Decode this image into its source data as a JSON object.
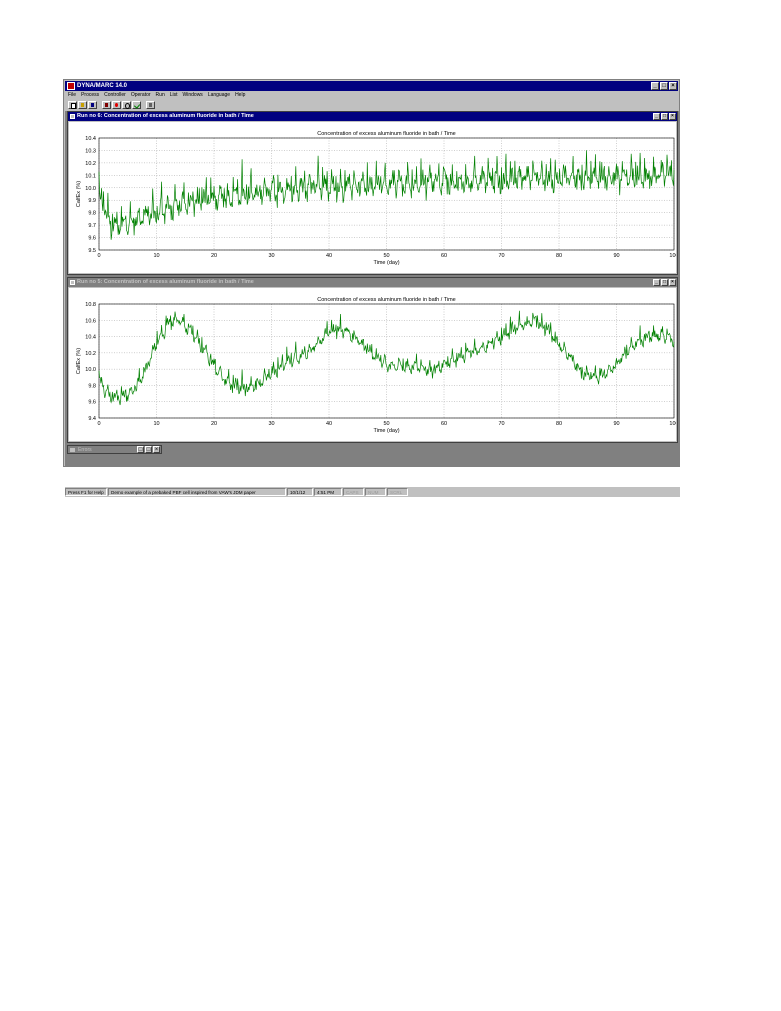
{
  "app": {
    "title": "DYNA/MARC 14.0",
    "menu": [
      "File",
      "Process",
      "Controller",
      "Operator",
      "Run",
      "List",
      "Windows",
      "Language",
      "Help"
    ],
    "toolbar_icons": [
      "new-icon",
      "open-icon",
      "save-icon",
      "chart-icon",
      "stop-icon",
      "zoom-icon",
      "check-icon",
      "print-icon"
    ],
    "window_buttons": {
      "minimize": "_",
      "maximize": "□",
      "close": "×"
    },
    "accent_color": "#000080",
    "series_color": "#008000"
  },
  "windows": [
    {
      "title": "Run no 6: Concentration of excess aluminum fluoride in bath / Time",
      "active": true
    },
    {
      "title": "Run no 5: Concentration of excess aluminum fluoride in bath / Time",
      "active": false
    }
  ],
  "minimized_window": {
    "title": "Errors"
  },
  "status_bar": {
    "help": "Press F1 for Help",
    "description": "Demo example of a prebaked PBF cell inspired from VAW's JDM paper",
    "date": "10/1/12",
    "time": "4:51 PM",
    "indicators": [
      "CAPS",
      "NUM",
      "SCRL"
    ]
  },
  "chart_data": [
    {
      "type": "line",
      "title": "Concentration of excess aluminum fluoride in bath / Time",
      "xlabel": "Time (day)",
      "ylabel": "CalfEx (%)",
      "xlim": [
        0,
        100
      ],
      "ylim": [
        9.5,
        10.4
      ],
      "xticks": [
        "0",
        "10",
        "20",
        "30",
        "40",
        "50",
        "60",
        "70",
        "80",
        "90",
        "100"
      ],
      "yticks": [
        "9.5",
        "9.6",
        "9.7",
        "9.8",
        "9.9",
        "10.0",
        "10.1",
        "10.2",
        "10.3",
        "10.4"
      ],
      "grid": true,
      "series": [
        {
          "color": "#008000",
          "x": [
            0,
            2,
            4,
            6,
            8,
            10,
            12,
            14,
            16,
            18,
            20,
            22,
            24,
            26,
            28,
            30,
            32,
            34,
            36,
            38,
            40,
            42,
            44,
            46,
            48,
            50,
            52,
            54,
            56,
            58,
            60,
            62,
            64,
            66,
            68,
            70,
            72,
            74,
            76,
            78,
            80,
            82,
            84,
            86,
            88,
            90,
            92,
            94,
            96,
            98,
            100
          ],
          "values": [
            9.95,
            9.7,
            9.68,
            9.72,
            9.76,
            9.79,
            9.83,
            9.85,
            9.88,
            9.9,
            9.92,
            9.91,
            9.93,
            9.95,
            9.96,
            9.97,
            9.96,
            9.98,
            9.99,
            10.0,
            10.0,
            9.99,
            10.01,
            10.02,
            10.0,
            10.02,
            10.03,
            10.01,
            10.03,
            10.04,
            10.05,
            10.04,
            10.03,
            10.05,
            10.06,
            10.05,
            10.07,
            10.06,
            10.08,
            10.07,
            10.06,
            10.08,
            10.07,
            10.09,
            10.08,
            10.06,
            10.08,
            10.09,
            10.08,
            10.1,
            10.12
          ],
          "fluctuation_amplitude": 0.12
        }
      ]
    },
    {
      "type": "line",
      "title": "Concentration of excess aluminum fluoride in bath / Time",
      "xlabel": "Time (day)",
      "ylabel": "CalfEx (%)",
      "xlim": [
        0,
        100
      ],
      "ylim": [
        9.4,
        10.8
      ],
      "xticks": [
        "0",
        "10",
        "20",
        "30",
        "40",
        "50",
        "60",
        "70",
        "80",
        "90",
        "100"
      ],
      "yticks": [
        "9.4",
        "9.6",
        "9.8",
        "10.0",
        "10.2",
        "10.4",
        "10.6",
        "10.8"
      ],
      "grid": true,
      "series": [
        {
          "color": "#008000",
          "x": [
            0,
            2,
            4,
            6,
            8,
            10,
            12,
            14,
            16,
            18,
            20,
            22,
            24,
            26,
            28,
            30,
            32,
            34,
            36,
            38,
            40,
            42,
            44,
            46,
            48,
            50,
            52,
            54,
            56,
            58,
            60,
            62,
            64,
            66,
            68,
            70,
            72,
            74,
            76,
            78,
            80,
            82,
            84,
            86,
            88,
            90,
            92,
            94,
            96,
            98,
            100
          ],
          "values": [
            9.85,
            9.65,
            9.66,
            9.72,
            9.95,
            10.3,
            10.55,
            10.6,
            10.45,
            10.25,
            10.05,
            9.85,
            9.78,
            9.75,
            9.82,
            9.95,
            10.05,
            10.12,
            10.18,
            10.3,
            10.45,
            10.48,
            10.4,
            10.28,
            10.15,
            10.05,
            10.02,
            10.03,
            10.0,
            9.98,
            10.05,
            10.12,
            10.18,
            10.22,
            10.3,
            10.4,
            10.48,
            10.55,
            10.58,
            10.48,
            10.3,
            10.12,
            9.95,
            9.9,
            9.93,
            10.05,
            10.22,
            10.35,
            10.4,
            10.4,
            10.35
          ],
          "fluctuation_amplitude": 0.1
        }
      ]
    }
  ]
}
